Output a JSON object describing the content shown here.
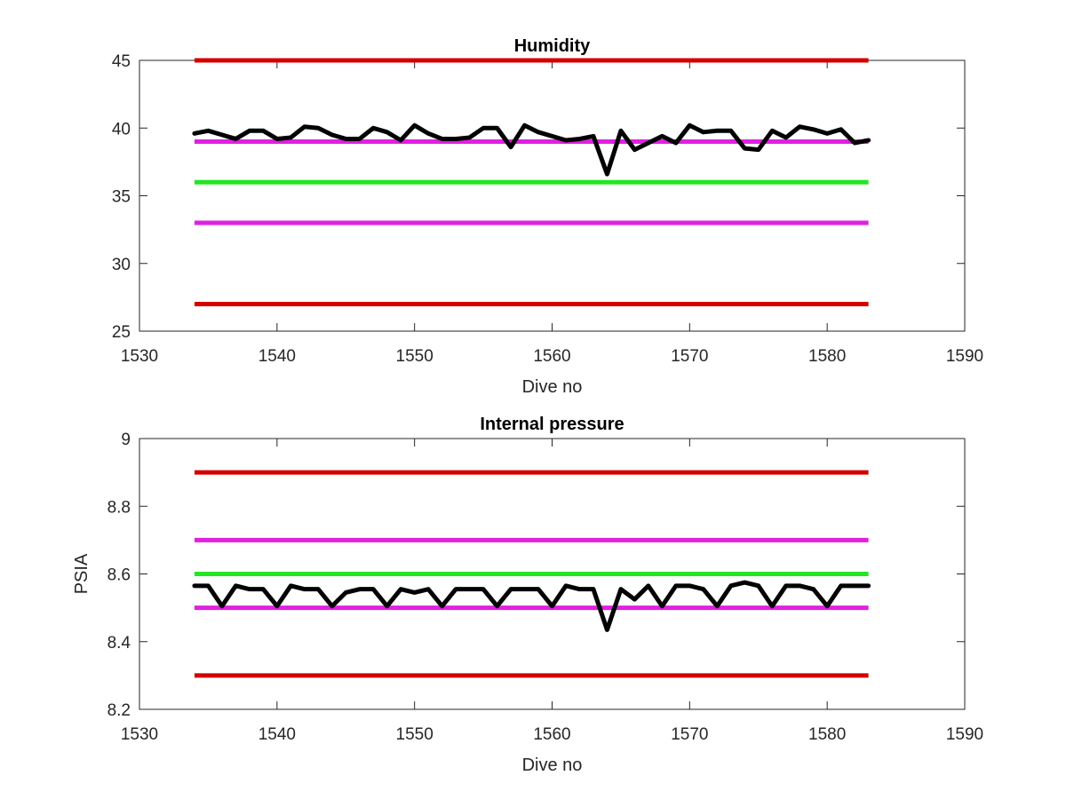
{
  "chart_data": [
    {
      "type": "line",
      "title": "Humidity",
      "xlabel": "Dive no",
      "ylabel": "",
      "xlim": [
        1530,
        1590
      ],
      "ylim": [
        25,
        45
      ],
      "xticks": [
        1530,
        1540,
        1550,
        1560,
        1570,
        1580,
        1590
      ],
      "xtick_labels": [
        "1530",
        "1540",
        "1550",
        "1560",
        "1570",
        "1580",
        "1590"
      ],
      "yticks": [
        25,
        30,
        35,
        40,
        45
      ],
      "ytick_labels": [
        "25",
        "30",
        "35",
        "40",
        "45"
      ],
      "grid": false,
      "legend": null,
      "thresholds": [
        {
          "y": 45,
          "color": "#d40000",
          "x": [
            1534,
            1583
          ]
        },
        {
          "y": 39,
          "color": "#e020e0",
          "x": [
            1534,
            1583
          ]
        },
        {
          "y": 36,
          "color": "#22e622",
          "x": [
            1534,
            1583
          ]
        },
        {
          "y": 33,
          "color": "#e020e0",
          "x": [
            1534,
            1583
          ]
        },
        {
          "y": 27,
          "color": "#d40000",
          "x": [
            1534,
            1583
          ]
        }
      ],
      "series": [
        {
          "color": "#000000",
          "x": [
            1534,
            1535,
            1536,
            1537,
            1538,
            1539,
            1540,
            1541,
            1542,
            1543,
            1544,
            1545,
            1546,
            1547,
            1548,
            1549,
            1550,
            1551,
            1552,
            1553,
            1554,
            1555,
            1556,
            1557,
            1558,
            1559,
            1560,
            1561,
            1562,
            1563,
            1564,
            1565,
            1566,
            1567,
            1568,
            1569,
            1570,
            1571,
            1572,
            1573,
            1574,
            1575,
            1576,
            1577,
            1578,
            1579,
            1580,
            1581,
            1582,
            1583
          ],
          "values": [
            39.6,
            39.8,
            39.5,
            39.2,
            39.8,
            39.8,
            39.2,
            39.3,
            40.1,
            40.0,
            39.5,
            39.2,
            39.2,
            40.0,
            39.7,
            39.1,
            40.2,
            39.6,
            39.2,
            39.2,
            39.3,
            40.0,
            40.0,
            38.6,
            40.2,
            39.7,
            39.4,
            39.1,
            39.2,
            39.4,
            36.6,
            39.8,
            38.4,
            38.9,
            39.4,
            38.9,
            40.2,
            39.7,
            39.8,
            39.8,
            38.5,
            38.4,
            39.8,
            39.3,
            40.1,
            39.9,
            39.6,
            39.9,
            38.9,
            39.1
          ]
        }
      ]
    },
    {
      "type": "line",
      "title": "Internal pressure",
      "xlabel": "Dive no",
      "ylabel": "PSIA",
      "xlim": [
        1530,
        1590
      ],
      "ylim": [
        8.2,
        9.0
      ],
      "xticks": [
        1530,
        1540,
        1550,
        1560,
        1570,
        1580,
        1590
      ],
      "xtick_labels": [
        "1530",
        "1540",
        "1550",
        "1560",
        "1570",
        "1580",
        "1590"
      ],
      "yticks": [
        8.2,
        8.4,
        8.6,
        8.8,
        9.0
      ],
      "ytick_labels": [
        "8.2",
        "8.4",
        "8.6",
        "8.8",
        "9"
      ],
      "grid": false,
      "legend": null,
      "thresholds": [
        {
          "y": 8.9,
          "color": "#d40000",
          "x": [
            1534,
            1583
          ]
        },
        {
          "y": 8.7,
          "color": "#e020e0",
          "x": [
            1534,
            1583
          ]
        },
        {
          "y": 8.6,
          "color": "#22e622",
          "x": [
            1534,
            1583
          ]
        },
        {
          "y": 8.5,
          "color": "#e020e0",
          "x": [
            1534,
            1583
          ]
        },
        {
          "y": 8.3,
          "color": "#d40000",
          "x": [
            1534,
            1583
          ]
        }
      ],
      "series": [
        {
          "color": "#000000",
          "x": [
            1534,
            1535,
            1536,
            1537,
            1538,
            1539,
            1540,
            1541,
            1542,
            1543,
            1544,
            1545,
            1546,
            1547,
            1548,
            1549,
            1550,
            1551,
            1552,
            1553,
            1554,
            1555,
            1556,
            1557,
            1558,
            1559,
            1560,
            1561,
            1562,
            1563,
            1564,
            1565,
            1566,
            1567,
            1568,
            1569,
            1570,
            1571,
            1572,
            1573,
            1574,
            1575,
            1576,
            1577,
            1578,
            1579,
            1580,
            1581,
            1582,
            1583
          ],
          "values": [
            8.565,
            8.565,
            8.505,
            8.565,
            8.555,
            8.555,
            8.505,
            8.565,
            8.555,
            8.555,
            8.505,
            8.545,
            8.555,
            8.555,
            8.505,
            8.555,
            8.545,
            8.555,
            8.505,
            8.555,
            8.555,
            8.555,
            8.505,
            8.555,
            8.555,
            8.555,
            8.505,
            8.565,
            8.555,
            8.555,
            8.435,
            8.555,
            8.525,
            8.565,
            8.505,
            8.565,
            8.565,
            8.555,
            8.505,
            8.565,
            8.575,
            8.565,
            8.505,
            8.565,
            8.565,
            8.555,
            8.505,
            8.565,
            8.565,
            8.565
          ]
        }
      ]
    }
  ]
}
